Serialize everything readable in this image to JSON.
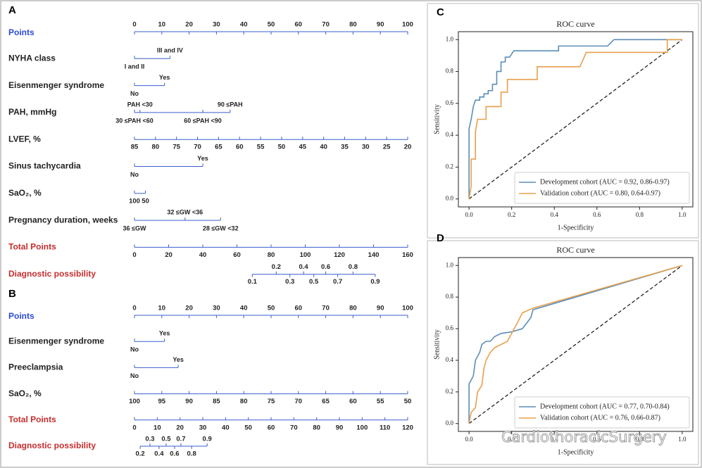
{
  "chart_data": [
    {
      "type": "nomogram",
      "panel": "A",
      "rows": [
        {
          "name": "Points",
          "color": "#2a4bd7",
          "lim": [
            0,
            100
          ],
          "ticks": [
            0,
            10,
            20,
            30,
            40,
            50,
            60,
            70,
            80,
            90,
            100
          ]
        },
        {
          "name": "NYHA class",
          "levels": [
            "I and II",
            "III and IV"
          ],
          "points": [
            0,
            13
          ]
        },
        {
          "name": "Eisenmenger syndrome",
          "levels": [
            "No",
            "Yes"
          ],
          "points": [
            0,
            11
          ]
        },
        {
          "name": "PAH, mmHg",
          "levels": [
            "PAH <30",
            "30 ≤PAH <60",
            "60 ≤PAH <90",
            "90 ≤PAH"
          ],
          "points": [
            2,
            0,
            25,
            35
          ]
        },
        {
          "name": "LVEF, %",
          "lim": [
            85,
            20
          ],
          "ticks": [
            85,
            80,
            75,
            70,
            65,
            60,
            55,
            50,
            45,
            40,
            35,
            30,
            25,
            20
          ],
          "points": [
            0,
            100
          ]
        },
        {
          "name": "Sinus tachycardia",
          "levels": [
            "No",
            "Yes"
          ],
          "points": [
            0,
            25
          ]
        },
        {
          "name": "SaO₂, %",
          "lim": [
            100,
            50
          ],
          "ticks": [
            100,
            50
          ],
          "points": [
            0,
            4
          ]
        },
        {
          "name": "Pregnancy duration, weeks",
          "levels": [
            "36 ≤GW",
            "32 ≤GW <36",
            "28 ≤GW <32"
          ],
          "points": [
            0,
            18.5,
            31.5
          ]
        },
        {
          "name": "Total Points",
          "color": "#c62d2d",
          "lim": [
            0,
            160
          ],
          "ticks": [
            0,
            20,
            40,
            60,
            80,
            100,
            120,
            140,
            160
          ]
        },
        {
          "name": "Diagnostic possibility",
          "color": "#c62d2d",
          "ticks": [
            0.1,
            0.2,
            0.3,
            0.4,
            0.5,
            0.6,
            0.7,
            0.8,
            0.9
          ],
          "total_points": [
            69,
            83,
            91,
            99,
            105,
            112,
            119,
            128,
            141
          ]
        }
      ]
    },
    {
      "type": "nomogram",
      "panel": "B",
      "rows": [
        {
          "name": "Points",
          "color": "#2a4bd7",
          "lim": [
            0,
            100
          ],
          "ticks": [
            0,
            10,
            20,
            30,
            40,
            50,
            60,
            70,
            80,
            90,
            100
          ]
        },
        {
          "name": "Eisenmenger syndrome",
          "levels": [
            "No",
            "Yes"
          ],
          "points": [
            0,
            11
          ]
        },
        {
          "name": "Preeclampsia",
          "levels": [
            "No",
            "Yes"
          ],
          "points": [
            0,
            16
          ]
        },
        {
          "name": "SaO₂, %",
          "lim": [
            100,
            50
          ],
          "ticks": [
            100,
            95,
            90,
            85,
            80,
            75,
            70,
            65,
            60,
            55,
            50
          ],
          "points": [
            0,
            100
          ]
        },
        {
          "name": "Total Points",
          "color": "#c62d2d",
          "lim": [
            0,
            120
          ],
          "ticks": [
            0,
            10,
            20,
            30,
            40,
            50,
            60,
            70,
            80,
            90,
            100,
            110,
            120
          ]
        },
        {
          "name": "Diagnostic possibility",
          "color": "#c62d2d",
          "ticks": [
            0.2,
            0.3,
            0.4,
            0.5,
            0.6,
            0.7,
            0.8,
            0.9
          ],
          "total_points": [
            2.5,
            6.8,
            10.8,
            13.9,
            17.6,
            20.4,
            25.1,
            31.9
          ]
        }
      ]
    },
    {
      "type": "line",
      "panel": "C",
      "title": "ROC curve",
      "xlabel": "1-Specificity",
      "ylabel": "Sensitivity",
      "xlim": [
        -0.05,
        1.05
      ],
      "ylim": [
        -0.05,
        1.05
      ],
      "xticks": [
        {
          "value": 0,
          "label": "0.0"
        },
        0.2,
        0.4,
        0.6,
        0.8,
        {
          "value": 1,
          "label": "1.0"
        }
      ],
      "yticks": [
        {
          "value": 0,
          "label": "0.0"
        },
        0.2,
        0.4,
        0.6,
        0.8,
        {
          "value": 1,
          "label": "1.0"
        }
      ],
      "diagonal": true,
      "legend": "lower right",
      "series": [
        {
          "name": "Development cohort (AUC = 0.92, 0.86-0.97)",
          "color": "#5b8db8",
          "x": [
            0,
            0,
            0.01,
            0.02,
            0.03,
            0.05,
            0.05,
            0.07,
            0.07,
            0.09,
            0.09,
            0.11,
            0.11,
            0.13,
            0.13,
            0.15,
            0.15,
            0.17,
            0.17,
            0.19,
            0.21,
            0.42,
            0.42,
            0.65,
            0.68,
            0.93,
            1
          ],
          "values": [
            0,
            0.44,
            0.5,
            0.58,
            0.62,
            0.62,
            0.64,
            0.64,
            0.66,
            0.66,
            0.68,
            0.68,
            0.72,
            0.72,
            0.8,
            0.8,
            0.86,
            0.86,
            0.89,
            0.89,
            0.93,
            0.93,
            0.96,
            0.96,
            1,
            1,
            1
          ]
        },
        {
          "name": "Validation cohort (AUC = 0.80, 0.64-0.97)",
          "color": "#e8a04c",
          "x": [
            0,
            0.01,
            0.01,
            0.03,
            0.03,
            0.04,
            0.08,
            0.08,
            0.15,
            0.15,
            0.18,
            0.18,
            0.32,
            0.32,
            0.52,
            0.55,
            0.93,
            0.93,
            1
          ],
          "values": [
            0,
            0.08,
            0.25,
            0.25,
            0.42,
            0.5,
            0.5,
            0.58,
            0.58,
            0.67,
            0.67,
            0.75,
            0.75,
            0.83,
            0.83,
            0.92,
            0.92,
            1,
            1
          ]
        }
      ]
    },
    {
      "type": "line",
      "panel": "D",
      "title": "ROC curve",
      "xlabel": "1-Specificity",
      "ylabel": "Sensitivity",
      "xlim": [
        -0.05,
        1.05
      ],
      "ylim": [
        -0.05,
        1.05
      ],
      "xticks": [
        {
          "value": 0,
          "label": "0.0"
        },
        0.2,
        0.4,
        0.6,
        0.8,
        {
          "value": 1,
          "label": "1.0"
        }
      ],
      "yticks": [
        {
          "value": 0,
          "label": "0.0"
        },
        0.2,
        0.4,
        0.6,
        0.8,
        {
          "value": 1,
          "label": "1.0"
        }
      ],
      "diagonal": true,
      "legend": "lower right",
      "series": [
        {
          "name": "Development cohort (AUC = 0.77, 0.70-0.84)",
          "color": "#5b8db8",
          "x": [
            0,
            0,
            0.02,
            0.03,
            0.05,
            0.06,
            0.08,
            0.1,
            0.12,
            0.15,
            0.2,
            0.25,
            0.29,
            0.3,
            1
          ],
          "values": [
            0,
            0.25,
            0.3,
            0.4,
            0.45,
            0.5,
            0.52,
            0.52,
            0.55,
            0.57,
            0.58,
            0.6,
            0.67,
            0.72,
            1
          ]
        },
        {
          "name": "Validation cohort (AUC = 0.76, 0.66-0.87)",
          "color": "#e8a04c",
          "x": [
            0,
            0.01,
            0.03,
            0.04,
            0.06,
            0.07,
            0.08,
            0.1,
            0.12,
            0.15,
            0.18,
            0.22,
            0.25,
            0.3,
            1
          ],
          "values": [
            0,
            0.07,
            0.1,
            0.2,
            0.24,
            0.35,
            0.4,
            0.45,
            0.48,
            0.5,
            0.52,
            0.62,
            0.7,
            0.73,
            1
          ]
        }
      ]
    }
  ],
  "watermark": "CardiothoracicSurgery"
}
